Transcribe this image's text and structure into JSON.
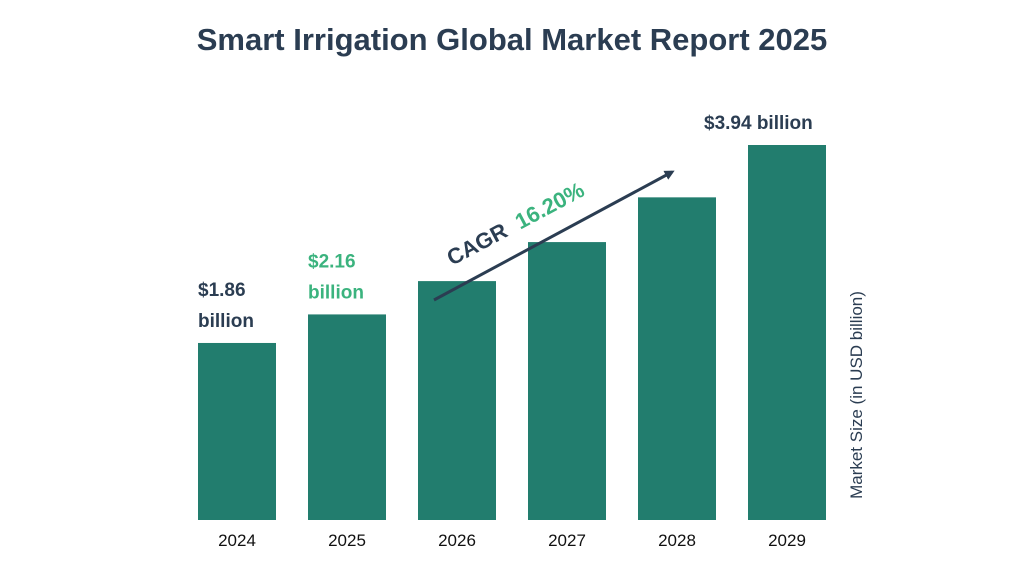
{
  "chart_data": {
    "type": "bar",
    "title": "Smart Irrigation Global Market Report 2025",
    "categories": [
      "2024",
      "2025",
      "2026",
      "2027",
      "2028",
      "2029"
    ],
    "values": [
      1.86,
      2.16,
      2.51,
      2.92,
      3.39,
      3.94
    ],
    "ylabel": "Market Size (in USD billion)",
    "xlabel": "",
    "ylim": [
      0,
      4.2
    ],
    "grid": false,
    "bar_color": "#227d6e",
    "annotations": [
      {
        "category": "2024",
        "line1": "$1.86",
        "line2": "billion",
        "color": "#2b3d52"
      },
      {
        "category": "2025",
        "line1": "$2.16",
        "line2": "billion",
        "color": "#3bb37e"
      },
      {
        "category": "2029",
        "line1": "$3.94 billion",
        "line2": "",
        "color": "#2b3d52"
      }
    ],
    "cagr": {
      "label": "CAGR",
      "value": "16.20%"
    }
  }
}
